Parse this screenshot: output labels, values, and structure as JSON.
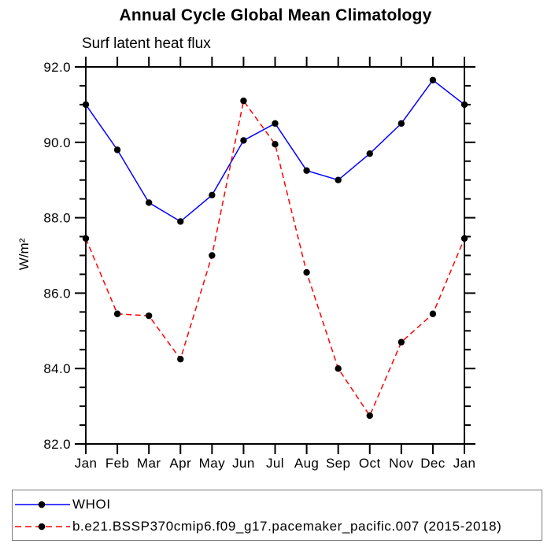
{
  "page": {
    "background": "#ffffff"
  },
  "chart": {
    "title": "Annual Cycle Global Mean Climatology",
    "subtitle": "Surf latent heat flux",
    "ylabel": "W/m²"
  },
  "legend": {
    "border_color": "#7a7a7a",
    "items": [
      {
        "label": "WHOI",
        "color": "#0000ff",
        "line_style": "solid",
        "marker": "black-circle",
        "marker_color": "#000000"
      },
      {
        "label": "b.e21.BSSP370cmip6.f09_g17.pacemaker_pacific.007 (2015-2018)",
        "color": "#ff0000",
        "line_style": "dashed",
        "marker": "black-circle",
        "marker_color": "#000000"
      }
    ]
  },
  "chart_data": {
    "type": "line",
    "title": "Annual Cycle Global Mean Climatology",
    "subtitle": "Surf latent heat flux",
    "xlabel": "",
    "ylabel": "W/m²",
    "categories": [
      "Jan",
      "Feb",
      "Mar",
      "Apr",
      "May",
      "Jun",
      "Jul",
      "Aug",
      "Sep",
      "Oct",
      "Nov",
      "Dec",
      "Jan"
    ],
    "ylim": [
      82.0,
      92.0
    ],
    "ytick_major_interval": 2.0,
    "ytick_minor_interval": 0.5,
    "ytick_labels": [
      "92.0",
      "90.0",
      "88.0",
      "86.0",
      "84.0",
      "82.0"
    ],
    "grid": false,
    "legend_position": "bottom",
    "frame_color": "#000000",
    "series": [
      {
        "name": "WHOI",
        "color": "#0000ff",
        "line_style": "solid",
        "marker": "circle",
        "marker_color": "#000000",
        "values": [
          91.0,
          89.8,
          88.4,
          87.9,
          88.6,
          90.05,
          90.5,
          89.25,
          89.0,
          89.7,
          90.5,
          91.65,
          91.0
        ]
      },
      {
        "name": "b.e21.BSSP370cmip6.f09_g17.pacemaker_pacific.007 (2015-2018)",
        "color": "#ff0000",
        "line_style": "dashed",
        "marker": "circle",
        "marker_color": "#000000",
        "values": [
          87.45,
          85.45,
          85.4,
          84.25,
          87.0,
          91.1,
          89.95,
          86.55,
          84.0,
          82.75,
          84.7,
          85.45,
          87.45
        ]
      }
    ]
  }
}
